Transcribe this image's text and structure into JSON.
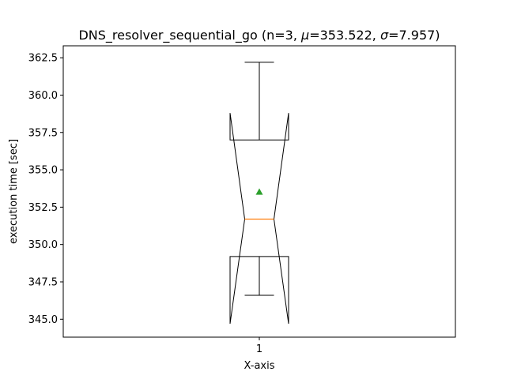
{
  "chart_data": {
    "type": "boxplot",
    "title_parts": {
      "prefix": "DNS_resolver_sequential_go (n=3, ",
      "mu_symbol": "μ",
      "mu_text": "=353.522, ",
      "sigma_symbol": "σ",
      "sigma_text": "=7.957)"
    },
    "xlabel": "X-axis",
    "ylabel": "execution time [sec]",
    "categories": [
      "1"
    ],
    "ylim": [
      343.8,
      363.3
    ],
    "yticks": [
      345.0,
      347.5,
      350.0,
      352.5,
      355.0,
      357.5,
      360.0,
      362.5
    ],
    "ytick_labels": [
      "345.0",
      "347.5",
      "350.0",
      "352.5",
      "355.0",
      "357.5",
      "360.0",
      "362.5"
    ],
    "notched": true,
    "show_mean": true,
    "boxes": [
      {
        "category": "1",
        "whisker_low": 346.6,
        "q1": 349.2,
        "median": 351.7,
        "q3": 357.0,
        "whisker_high": 362.2,
        "notch_low": 344.7,
        "notch_high": 358.8,
        "mean": 353.522
      }
    ],
    "colors": {
      "box": "#000000",
      "median": "#ff7f0e",
      "mean": "#2ca02c"
    }
  }
}
